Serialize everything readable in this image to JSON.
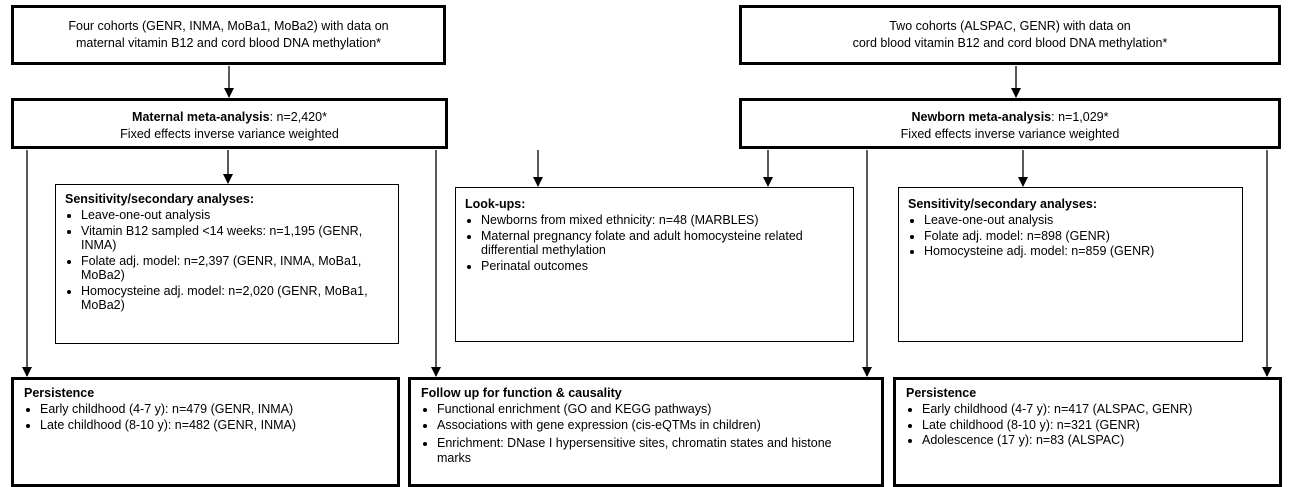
{
  "top_left": {
    "line1": "Four cohorts (GENR, INMA, MoBa1, MoBa2) with data on",
    "line2": "maternal vitamin B12 and cord blood DNA methylation*"
  },
  "top_right": {
    "line1": "Two cohorts (ALSPAC, GENR) with data on",
    "line2": "cord blood vitamin B12 and cord blood DNA methylation*"
  },
  "maternal_meta": {
    "title": "Maternal meta-analysis",
    "n": ": n=2,420*",
    "method": "Fixed effects inverse variance weighted"
  },
  "newborn_meta": {
    "title": "Newborn meta-analysis",
    "n": ": n=1,029*",
    "method": "Fixed effects inverse variance weighted"
  },
  "sens_left": {
    "heading": "Sensitivity/secondary analyses:",
    "items": [
      "Leave-one-out analysis",
      "Vitamin B12 sampled <14 weeks: n=1,195 (GENR, INMA)",
      "Folate adj. model: n=2,397 (GENR, INMA, MoBa1, MoBa2)",
      "Homocysteine adj. model: n=2,020 (GENR, MoBa1, MoBa2)"
    ]
  },
  "lookups": {
    "heading": "Look-ups:",
    "items": [
      "Newborns from mixed ethnicity: n=48 (MARBLES)",
      "Maternal pregnancy folate and adult homocysteine related differential methylation",
      "Perinatal outcomes"
    ]
  },
  "sens_right": {
    "heading": "Sensitivity/secondary analyses:",
    "items": [
      "Leave-one-out analysis",
      "Folate adj. model: n=898 (GENR)",
      "Homocysteine adj. model: n=859 (GENR)"
    ]
  },
  "persist_left": {
    "heading": "Persistence",
    "items": [
      "Early childhood (4-7 y): n=479 (GENR, INMA)",
      "Late childhood (8-10 y): n=482 (GENR, INMA)"
    ]
  },
  "followup": {
    "heading": "Follow up for function & causality",
    "items": [
      "Functional enrichment (GO and KEGG pathways)",
      "Associations with gene expression (cis-eQTMs in children)",
      "Enrichment: DNase I hypersensitive sites, chromatin states and histone marks"
    ]
  },
  "persist_right": {
    "heading": "Persistence",
    "items": [
      "Early childhood (4-7 y): n=417 (ALSPAC, GENR)",
      "Late childhood (8-10 y): n=321 (GENR)",
      "Adolescence (17 y): n=83 (ALSPAC)"
    ]
  }
}
